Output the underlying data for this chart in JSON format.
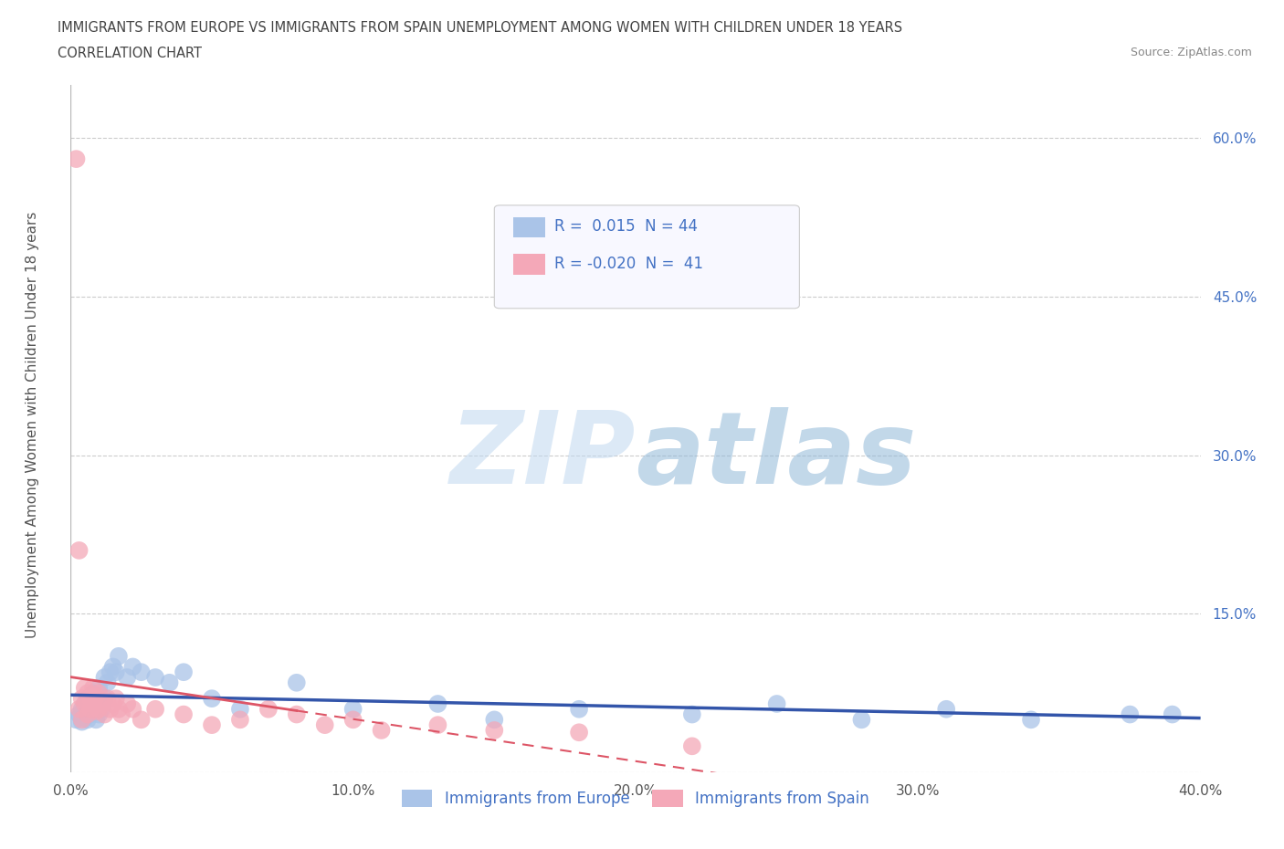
{
  "title_line1": "IMMIGRANTS FROM EUROPE VS IMMIGRANTS FROM SPAIN UNEMPLOYMENT AMONG WOMEN WITH CHILDREN UNDER 18 YEARS",
  "title_line2": "CORRELATION CHART",
  "source": "Source: ZipAtlas.com",
  "ylabel": "Unemployment Among Women with Children Under 18 years",
  "xlim": [
    0.0,
    0.4
  ],
  "ylim": [
    0.0,
    0.65
  ],
  "xticks": [
    0.0,
    0.1,
    0.2,
    0.3,
    0.4
  ],
  "xtick_labels": [
    "0.0%",
    "10.0%",
    "20.0%",
    "30.0%",
    "40.0%"
  ],
  "yticks": [
    0.0,
    0.15,
    0.3,
    0.45,
    0.6
  ],
  "ytick_labels": [
    "",
    "15.0%",
    "30.0%",
    "45.0%",
    "60.0%"
  ],
  "grid_color": "#cccccc",
  "background_color": "#ffffff",
  "blue_color": "#aac4e8",
  "pink_color": "#f4a8b8",
  "blue_line_color": "#3355aa",
  "pink_line_color": "#dd5566",
  "watermark_zip": "ZIP",
  "watermark_atlas": "atlas",
  "legend_R_blue": " 0.015",
  "legend_N_blue": "44",
  "legend_R_pink": "-0.020",
  "legend_N_pink": "41",
  "blue_scatter_x": [
    0.002,
    0.003,
    0.004,
    0.004,
    0.005,
    0.005,
    0.006,
    0.006,
    0.007,
    0.007,
    0.008,
    0.008,
    0.009,
    0.009,
    0.01,
    0.01,
    0.011,
    0.012,
    0.012,
    0.013,
    0.014,
    0.015,
    0.016,
    0.017,
    0.02,
    0.022,
    0.025,
    0.03,
    0.035,
    0.04,
    0.05,
    0.06,
    0.08,
    0.1,
    0.13,
    0.15,
    0.18,
    0.22,
    0.25,
    0.28,
    0.31,
    0.34,
    0.375,
    0.39
  ],
  "blue_scatter_y": [
    0.05,
    0.055,
    0.048,
    0.06,
    0.052,
    0.065,
    0.05,
    0.07,
    0.055,
    0.06,
    0.058,
    0.075,
    0.05,
    0.065,
    0.055,
    0.08,
    0.06,
    0.09,
    0.07,
    0.085,
    0.095,
    0.1,
    0.095,
    0.11,
    0.09,
    0.1,
    0.095,
    0.09,
    0.085,
    0.095,
    0.07,
    0.06,
    0.085,
    0.06,
    0.065,
    0.05,
    0.06,
    0.055,
    0.065,
    0.05,
    0.06,
    0.05,
    0.055,
    0.055
  ],
  "pink_scatter_x": [
    0.002,
    0.003,
    0.003,
    0.004,
    0.004,
    0.005,
    0.005,
    0.006,
    0.006,
    0.007,
    0.007,
    0.008,
    0.008,
    0.009,
    0.009,
    0.01,
    0.01,
    0.011,
    0.012,
    0.013,
    0.014,
    0.015,
    0.016,
    0.017,
    0.018,
    0.02,
    0.022,
    0.025,
    0.03,
    0.04,
    0.05,
    0.06,
    0.07,
    0.08,
    0.09,
    0.1,
    0.11,
    0.13,
    0.15,
    0.18,
    0.22
  ],
  "pink_scatter_y": [
    0.58,
    0.21,
    0.06,
    0.07,
    0.05,
    0.065,
    0.08,
    0.055,
    0.075,
    0.06,
    0.07,
    0.065,
    0.08,
    0.058,
    0.072,
    0.06,
    0.075,
    0.065,
    0.055,
    0.07,
    0.06,
    0.065,
    0.07,
    0.06,
    0.055,
    0.065,
    0.06,
    0.05,
    0.06,
    0.055,
    0.045,
    0.05,
    0.06,
    0.055,
    0.045,
    0.05,
    0.04,
    0.045,
    0.04,
    0.038,
    0.025
  ]
}
